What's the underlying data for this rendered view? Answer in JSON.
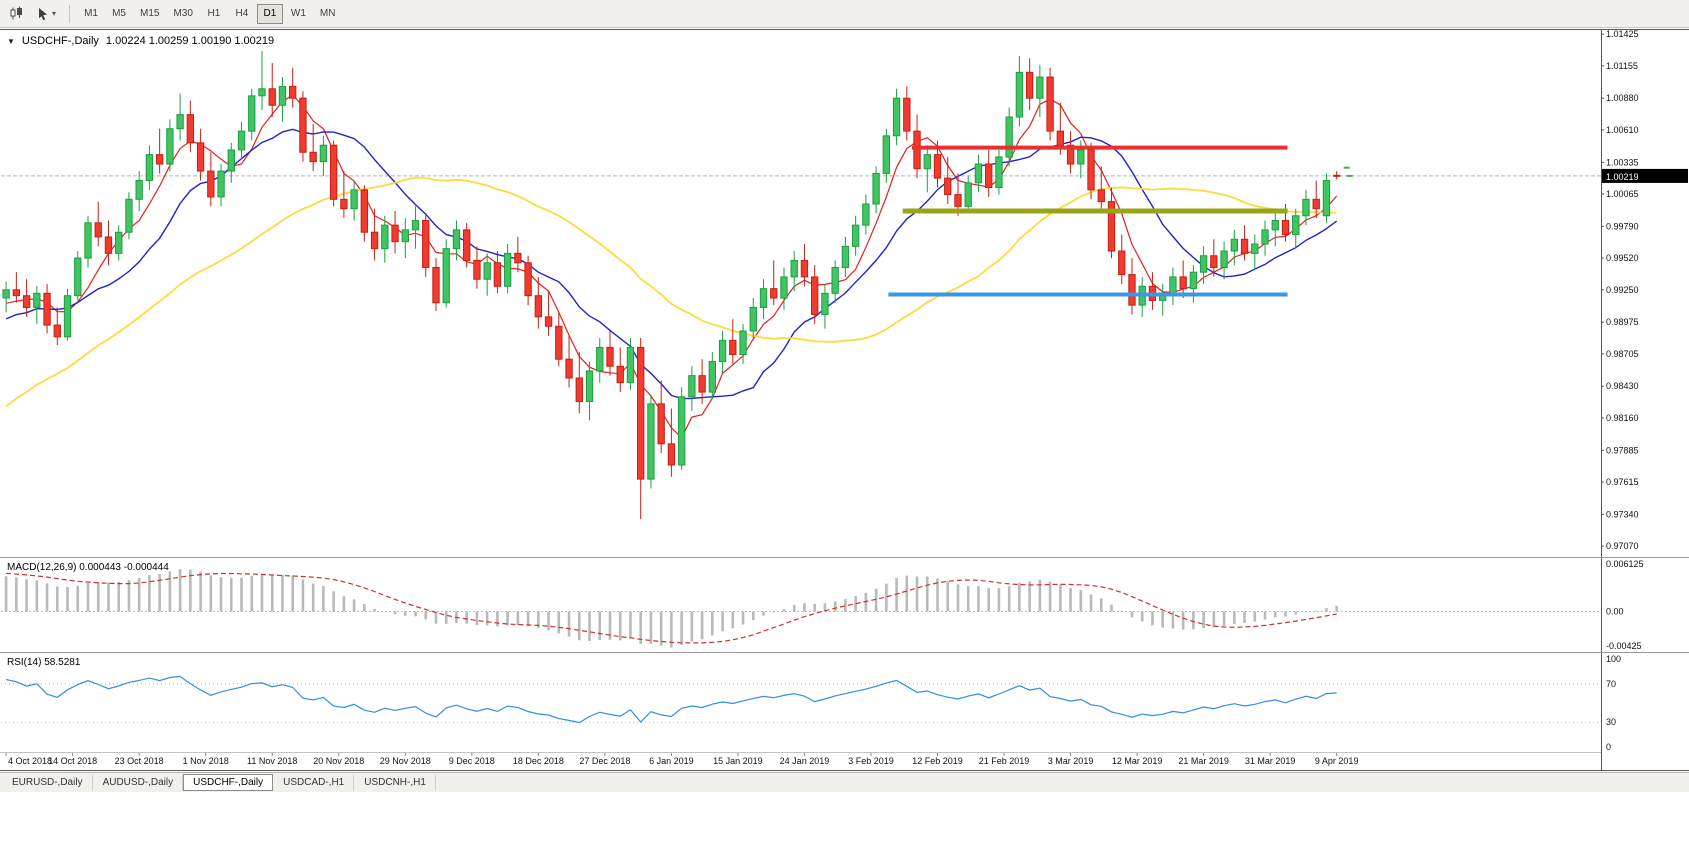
{
  "toolbar": {
    "timeframes": [
      "M1",
      "M5",
      "M15",
      "M30",
      "H1",
      "H4",
      "D1",
      "W1",
      "MN"
    ],
    "active_timeframe": "D1",
    "icons": [
      "candlestick-ch art-icon",
      "cursor-tool-icon",
      "dropdown-caret-icon"
    ]
  },
  "header": {
    "dropdown_glyph": "▼",
    "symbol": "USDCHF-,Daily",
    "ohlc": "1.00224 1.00259 1.00190 1.00219"
  },
  "price_axis": {
    "ticks": [
      "1.01425",
      "1.01155",
      "1.00880",
      "1.00610",
      "1.00335",
      "1.00065",
      "0.99790",
      "0.99520",
      "0.99250",
      "0.98975",
      "0.98705",
      "0.98430",
      "0.98160",
      "0.97885",
      "0.97615",
      "0.97340",
      "0.97070"
    ],
    "current_price": "1.00219"
  },
  "macd_panel": {
    "label": "MACD(12,26,9) 0.000443 -0.000444",
    "axis": [
      "0.006125",
      "0.00",
      "-0.00425"
    ]
  },
  "rsi_panel": {
    "label": "RSI(14) 58.5281",
    "axis": [
      "100",
      "70",
      "30",
      "0"
    ],
    "levels": [
      70,
      30
    ]
  },
  "time_axis": {
    "labels": [
      "4 Oct 2018",
      "14 Oct 2018",
      "23 Oct 2018",
      "1 Nov 2018",
      "11 Nov 2018",
      "20 Nov 2018",
      "29 Nov 2018",
      "9 Dec 2018",
      "18 Dec 2018",
      "27 Dec 2018",
      "6 Jan 2019",
      "15 Jan 2019",
      "24 Jan 2019",
      "3 Feb 2019",
      "12 Feb 2019",
      "21 Feb 2019",
      "3 Mar 2019",
      "12 Mar 2019",
      "21 Mar 2019",
      "31 Mar 2019",
      "9 Apr 2019"
    ]
  },
  "tabs": {
    "items": [
      "EURUSD-,Daily",
      "AUDUSD-,Daily",
      "USDCHF-,Daily",
      "USDCAD-,H1",
      "USDCNH-,H1"
    ],
    "active": "USDCHF-,Daily"
  },
  "colors": {
    "candle_up": "#42c462",
    "candle_up_edge": "#1d9e42",
    "candle_down": "#ef3b30",
    "candle_down_edge": "#c52014",
    "ma_fast": "#e02020",
    "ma_medium": "#2222cc",
    "ma_slow": "#ffd940",
    "hline_red": "#e83030",
    "hline_olive": "#9aa417",
    "hline_blue": "#3b95e8",
    "macd_bar": "#b9b9b9",
    "macd_signal": "#d03030",
    "rsi_line": "#2f8fe8",
    "price_tag_bg": "#000000",
    "price_tag_text": "#ffffff",
    "grid_dotted": "#c0c0c0",
    "current_price_line": "#b8b8b8"
  },
  "chart_data": {
    "type": "candlestick+indicators",
    "symbol": "USDCHF",
    "timeframe": "Daily",
    "ylim": [
      0.9702,
      1.0146
    ],
    "x_range": [
      "4 Oct 2018",
      "9 Apr 2019"
    ],
    "candles": [
      [
        0.9918,
        0.9932,
        0.9906,
        0.9925
      ],
      [
        0.9925,
        0.994,
        0.9914,
        0.992
      ],
      [
        0.992,
        0.9934,
        0.9902,
        0.991
      ],
      [
        0.991,
        0.9928,
        0.9896,
        0.9922
      ],
      [
        0.9922,
        0.993,
        0.9888,
        0.9895
      ],
      [
        0.9895,
        0.991,
        0.9878,
        0.9885
      ],
      [
        0.9885,
        0.9926,
        0.9882,
        0.992
      ],
      [
        0.992,
        0.9958,
        0.9916,
        0.9952
      ],
      [
        0.9952,
        0.9988,
        0.9944,
        0.9982
      ],
      [
        0.9982,
        1.0,
        0.9962,
        0.997
      ],
      [
        0.997,
        0.9984,
        0.9946,
        0.9956
      ],
      [
        0.9956,
        0.998,
        0.995,
        0.9974
      ],
      [
        0.9974,
        1.0008,
        0.9968,
        1.0002
      ],
      [
        1.0002,
        1.0026,
        0.9992,
        1.0018
      ],
      [
        1.0018,
        1.0048,
        1.001,
        1.004
      ],
      [
        1.004,
        1.0062,
        1.0024,
        1.0032
      ],
      [
        1.0032,
        1.007,
        1.0026,
        1.0062
      ],
      [
        1.0062,
        1.0092,
        1.0052,
        1.0074
      ],
      [
        1.0074,
        1.0086,
        1.0042,
        1.005
      ],
      [
        1.005,
        1.0062,
        1.0018,
        1.0026
      ],
      [
        1.0026,
        1.0042,
        0.9996,
        1.0004
      ],
      [
        1.0004,
        1.0032,
        0.9996,
        1.0026
      ],
      [
        1.0026,
        1.005,
        1.0016,
        1.0044
      ],
      [
        1.0044,
        1.0068,
        1.0036,
        1.006
      ],
      [
        1.006,
        1.0096,
        1.0052,
        1.009
      ],
      [
        1.009,
        1.0128,
        1.0078,
        1.0096
      ],
      [
        1.0096,
        1.0118,
        1.0072,
        1.0082
      ],
      [
        1.0082,
        1.0106,
        1.0068,
        1.0098
      ],
      [
        1.0098,
        1.0114,
        1.008,
        1.0088
      ],
      [
        1.0088,
        1.0094,
        1.0034,
        1.0042
      ],
      [
        1.0042,
        1.0066,
        1.0026,
        1.0034
      ],
      [
        1.0034,
        1.0056,
        1.0022,
        1.0048
      ],
      [
        1.0048,
        1.0052,
        0.9996,
        1.0002
      ],
      [
        1.0002,
        1.0026,
        0.9986,
        0.9994
      ],
      [
        0.9994,
        1.0018,
        0.9984,
        1.001
      ],
      [
        1.001,
        1.0014,
        0.9966,
        0.9974
      ],
      [
        0.9974,
        0.9994,
        0.995,
        0.996
      ],
      [
        0.996,
        0.9988,
        0.9948,
        0.998
      ],
      [
        0.998,
        0.9992,
        0.9956,
        0.9966
      ],
      [
        0.9966,
        0.9986,
        0.9952,
        0.9976
      ],
      [
        0.9976,
        0.9996,
        0.996,
        0.9984
      ],
      [
        0.9984,
        0.999,
        0.9936,
        0.9944
      ],
      [
        0.9944,
        0.9952,
        0.9907,
        0.9914
      ],
      [
        0.9914,
        0.9968,
        0.991,
        0.996
      ],
      [
        0.996,
        0.9984,
        0.995,
        0.9976
      ],
      [
        0.9976,
        0.9982,
        0.9944,
        0.995
      ],
      [
        0.995,
        0.9962,
        0.9926,
        0.9934
      ],
      [
        0.9934,
        0.9956,
        0.992,
        0.9948
      ],
      [
        0.9948,
        0.9958,
        0.9922,
        0.9928
      ],
      [
        0.9928,
        0.9964,
        0.9922,
        0.9956
      ],
      [
        0.9956,
        0.997,
        0.994,
        0.9948
      ],
      [
        0.9948,
        0.9954,
        0.9912,
        0.992
      ],
      [
        0.992,
        0.9936,
        0.9892,
        0.9902
      ],
      [
        0.9902,
        0.9924,
        0.9886,
        0.9894
      ],
      [
        0.9894,
        0.9906,
        0.986,
        0.9866
      ],
      [
        0.9866,
        0.9886,
        0.9842,
        0.985
      ],
      [
        0.985,
        0.9872,
        0.982,
        0.983
      ],
      [
        0.983,
        0.9864,
        0.9814,
        0.9856
      ],
      [
        0.9856,
        0.9884,
        0.9846,
        0.9876
      ],
      [
        0.9876,
        0.989,
        0.9852,
        0.986
      ],
      [
        0.986,
        0.9876,
        0.9838,
        0.9846
      ],
      [
        0.9846,
        0.9884,
        0.984,
        0.9876
      ],
      [
        0.9876,
        0.9884,
        0.973,
        0.9764
      ],
      [
        0.9764,
        0.9836,
        0.9756,
        0.9828
      ],
      [
        0.9828,
        0.9848,
        0.9786,
        0.9794
      ],
      [
        0.9794,
        0.9824,
        0.9766,
        0.9776
      ],
      [
        0.9776,
        0.9842,
        0.9772,
        0.9834
      ],
      [
        0.9834,
        0.986,
        0.9822,
        0.9852
      ],
      [
        0.9852,
        0.9866,
        0.9828,
        0.9838
      ],
      [
        0.9838,
        0.9872,
        0.9832,
        0.9864
      ],
      [
        0.9864,
        0.989,
        0.9854,
        0.9882
      ],
      [
        0.9882,
        0.99,
        0.9862,
        0.987
      ],
      [
        0.987,
        0.9896,
        0.9862,
        0.989
      ],
      [
        0.989,
        0.9918,
        0.9882,
        0.991
      ],
      [
        0.991,
        0.9934,
        0.99,
        0.9926
      ],
      [
        0.9926,
        0.995,
        0.9912,
        0.9918
      ],
      [
        0.9918,
        0.9944,
        0.9908,
        0.9936
      ],
      [
        0.9936,
        0.9958,
        0.9924,
        0.995
      ],
      [
        0.995,
        0.9964,
        0.9928,
        0.9936
      ],
      [
        0.9936,
        0.9946,
        0.9896,
        0.9904
      ],
      [
        0.9904,
        0.993,
        0.9892,
        0.9922
      ],
      [
        0.9922,
        0.995,
        0.9914,
        0.9944
      ],
      [
        0.9944,
        0.997,
        0.9936,
        0.9962
      ],
      [
        0.9962,
        0.9988,
        0.9954,
        0.998
      ],
      [
        0.998,
        1.0006,
        0.9972,
        0.9998
      ],
      [
        0.9998,
        1.003,
        0.999,
        1.0024
      ],
      [
        1.0024,
        1.0062,
        1.0016,
        1.0056
      ],
      [
        1.0056,
        1.0096,
        1.0048,
        1.0088
      ],
      [
        1.0088,
        1.0098,
        1.0052,
        1.006
      ],
      [
        1.006,
        1.0074,
        1.002,
        1.0028
      ],
      [
        1.0028,
        1.0048,
        1.0008,
        1.004
      ],
      [
        1.004,
        1.0052,
        1.0012,
        1.002
      ],
      [
        1.002,
        1.0038,
        0.9998,
        1.0006
      ],
      [
        1.0006,
        1.0024,
        0.9988,
        0.9996
      ],
      [
        0.9996,
        1.0022,
        0.999,
        1.0016
      ],
      [
        1.0016,
        1.004,
        1.0008,
        1.0032
      ],
      [
        1.0032,
        1.0044,
        1.0004,
        1.0012
      ],
      [
        1.0012,
        1.0044,
        1.0006,
        1.0038
      ],
      [
        1.0038,
        1.008,
        1.003,
        1.0072
      ],
      [
        1.0072,
        1.0124,
        1.0064,
        1.011
      ],
      [
        1.011,
        1.0122,
        1.0078,
        1.0088
      ],
      [
        1.0088,
        1.0116,
        1.0072,
        1.0106
      ],
      [
        1.0106,
        1.0114,
        1.0052,
        1.006
      ],
      [
        1.006,
        1.0084,
        1.004,
        1.0048
      ],
      [
        1.0048,
        1.006,
        1.0024,
        1.0032
      ],
      [
        1.0032,
        1.0052,
        1.002,
        1.0044
      ],
      [
        1.0044,
        1.005,
        1.0002,
        1.001
      ],
      [
        1.001,
        1.003,
        0.9994,
        1.0
      ],
      [
        1.0,
        1.0012,
        0.9952,
        0.9958
      ],
      [
        0.9958,
        0.9972,
        0.993,
        0.9938
      ],
      [
        0.9938,
        0.9952,
        0.9904,
        0.9912
      ],
      [
        0.9912,
        0.9936,
        0.9902,
        0.9928
      ],
      [
        0.9928,
        0.994,
        0.9908,
        0.9916
      ],
      [
        0.9916,
        0.993,
        0.9903,
        0.9922
      ],
      [
        0.9922,
        0.9944,
        0.9912,
        0.9936
      ],
      [
        0.9936,
        0.995,
        0.9918,
        0.9926
      ],
      [
        0.9926,
        0.9946,
        0.9914,
        0.994
      ],
      [
        0.994,
        0.9962,
        0.993,
        0.9954
      ],
      [
        0.9954,
        0.9968,
        0.9936,
        0.9944
      ],
      [
        0.9944,
        0.9966,
        0.9934,
        0.9958
      ],
      [
        0.9958,
        0.9976,
        0.9946,
        0.9968
      ],
      [
        0.9968,
        0.998,
        0.995,
        0.9956
      ],
      [
        0.9956,
        0.9972,
        0.9942,
        0.9964
      ],
      [
        0.9964,
        0.9984,
        0.9954,
        0.9976
      ],
      [
        0.9976,
        0.9992,
        0.9962,
        0.9984
      ],
      [
        0.9984,
        0.9998,
        0.9966,
        0.9972
      ],
      [
        0.9972,
        0.9994,
        0.996,
        0.9988
      ],
      [
        0.9988,
        1.001,
        0.998,
        1.0002
      ],
      [
        1.0002,
        1.0018,
        0.9986,
        0.9994
      ],
      [
        0.9988,
        1.0024,
        0.9982,
        1.0018
      ],
      [
        1.00224,
        1.00259,
        1.0019,
        1.00219
      ]
    ],
    "overlays": {
      "moving_averages": [
        {
          "name": "fast-ma",
          "period": 5,
          "color": "#e02020",
          "width": 1.2
        },
        {
          "name": "medium-ma",
          "period": 12,
          "color": "#2222cc",
          "width": 1.4
        },
        {
          "name": "slow-ma",
          "period": 34,
          "color": "#ffd940",
          "width": 1.8
        }
      ],
      "hlines": [
        {
          "name": "resistance-line",
          "color": "#e83030",
          "price": 1.0046,
          "from_index": 88.5,
          "to_index": 125.2,
          "width": 4
        },
        {
          "name": "pivot-line",
          "color": "#9aa417",
          "price": 0.9992,
          "from_index": 87.6,
          "to_index": 125.2,
          "width": 5
        },
        {
          "name": "support-line",
          "color": "#3b95e8",
          "price": 0.9921,
          "from_index": 86.2,
          "to_index": 125.2,
          "width": 4
        }
      ],
      "current_price": 1.00219
    },
    "indicators": [
      {
        "type": "MACD",
        "params": [
          12,
          26,
          9
        ],
        "shown_values": [
          0.000443,
          -0.000444
        ],
        "axis_range": [
          -0.0047,
          0.0063
        ]
      },
      {
        "type": "RSI",
        "params": [
          14
        ],
        "shown_value": 58.5281,
        "axis_range": [
          0,
          100
        ],
        "levels": [
          70,
          30
        ]
      }
    ]
  }
}
